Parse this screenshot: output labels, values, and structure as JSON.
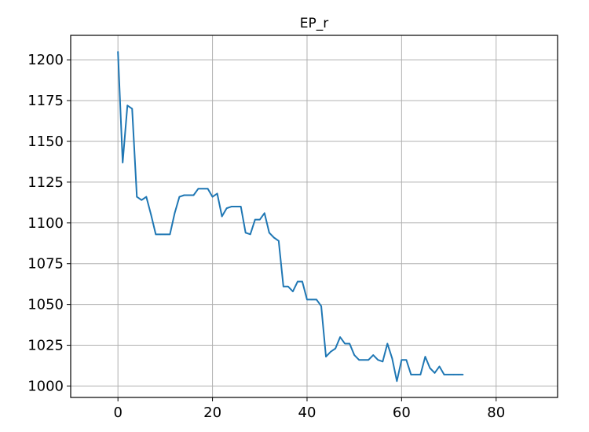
{
  "chart_data": {
    "type": "line",
    "title": "EP_r",
    "xlabel": "",
    "ylabel": "",
    "xlim": [
      -10,
      93
    ],
    "ylim": [
      993,
      1215
    ],
    "xticks": [
      0,
      20,
      40,
      60,
      80
    ],
    "yticks": [
      1000,
      1025,
      1050,
      1075,
      1100,
      1125,
      1150,
      1175,
      1200
    ],
    "grid": true,
    "series": [
      {
        "color": "#1f77b4",
        "x": [
          0,
          1,
          2,
          3,
          4,
          5,
          6,
          7,
          8,
          9,
          10,
          11,
          12,
          13,
          14,
          15,
          16,
          17,
          18,
          19,
          20,
          21,
          22,
          23,
          24,
          25,
          26,
          27,
          28,
          29,
          30,
          31,
          32,
          33,
          34,
          35,
          36,
          37,
          38,
          39,
          40,
          41,
          42,
          43,
          44,
          45,
          46,
          47,
          48,
          49,
          50,
          51,
          52,
          53,
          54,
          55,
          56,
          57,
          58,
          59,
          60,
          61,
          62,
          63,
          64,
          65,
          66,
          67,
          68,
          69,
          70,
          71,
          72,
          73
        ],
        "values": [
          1205,
          1137,
          1172,
          1170,
          1116,
          1114,
          1116,
          1105,
          1093,
          1093,
          1093,
          1093,
          1106,
          1116,
          1117,
          1117,
          1117,
          1121,
          1121,
          1121,
          1116,
          1118,
          1104,
          1109,
          1110,
          1110,
          1110,
          1094,
          1093,
          1102,
          1102,
          1106,
          1094,
          1091,
          1089,
          1061,
          1061,
          1058,
          1064,
          1064,
          1053,
          1053,
          1053,
          1049,
          1018,
          1021,
          1023,
          1030,
          1026,
          1026,
          1019,
          1016,
          1016,
          1016,
          1019,
          1016,
          1015,
          1026,
          1017,
          1003,
          1016,
          1016,
          1007,
          1007,
          1007,
          1018,
          1011,
          1008,
          1012,
          1007,
          1007,
          1007,
          1007,
          1007
        ]
      }
    ]
  }
}
